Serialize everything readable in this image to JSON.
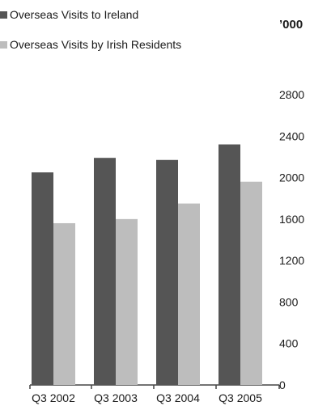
{
  "chart_data": {
    "type": "bar",
    "unit_label": "’000",
    "categories": [
      "Q3 2002",
      "Q3 2003",
      "Q3 2004",
      "Q3 2005"
    ],
    "series": [
      {
        "name": "Overseas Visits to Ireland",
        "values": [
          2050,
          2190,
          2170,
          2320
        ],
        "color": "#555555"
      },
      {
        "name": "Overseas Visits by Irish Residents",
        "values": [
          1560,
          1600,
          1750,
          1960
        ],
        "color": "#bdbdbd"
      }
    ],
    "ylim": [
      0,
      2800
    ],
    "yticks": [
      0,
      400,
      800,
      1200,
      1600,
      2000,
      2400,
      2800
    ],
    "grid": false,
    "legend_position": "top-left"
  }
}
